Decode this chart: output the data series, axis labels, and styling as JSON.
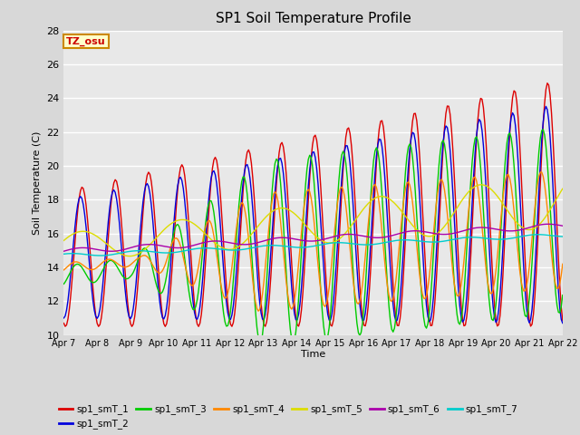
{
  "title": "SP1 Soil Temperature Profile",
  "xlabel": "Time",
  "ylabel": "Soil Temperature (C)",
  "ylim": [
    10,
    28
  ],
  "series_labels": [
    "sp1_smT_1",
    "sp1_smT_2",
    "sp1_smT_3",
    "sp1_smT_4",
    "sp1_smT_5",
    "sp1_smT_6",
    "sp1_smT_7"
  ],
  "series_colors": [
    "#dd0000",
    "#0000dd",
    "#00cc00",
    "#ff8800",
    "#dddd00",
    "#aa00aa",
    "#00cccc"
  ],
  "tz_label": "TZ_osu",
  "tz_bg": "#ffffcc",
  "tz_border": "#cc8800",
  "bg_color": "#d8d8d8",
  "plot_bg": "#e8e8e8",
  "grid_color": "#ffffff",
  "tick_labels": [
    "Apr 7",
    "Apr 8",
    "Apr 9",
    "Apr 10",
    "Apr 11",
    "Apr 12",
    "Apr 13",
    "Apr 14",
    "Apr 15",
    "Apr 16",
    "Apr 17",
    "Apr 18",
    "Apr 19",
    "Apr 20",
    "Apr 21",
    "Apr 22"
  ],
  "figsize": [
    6.4,
    4.8
  ],
  "dpi": 100
}
